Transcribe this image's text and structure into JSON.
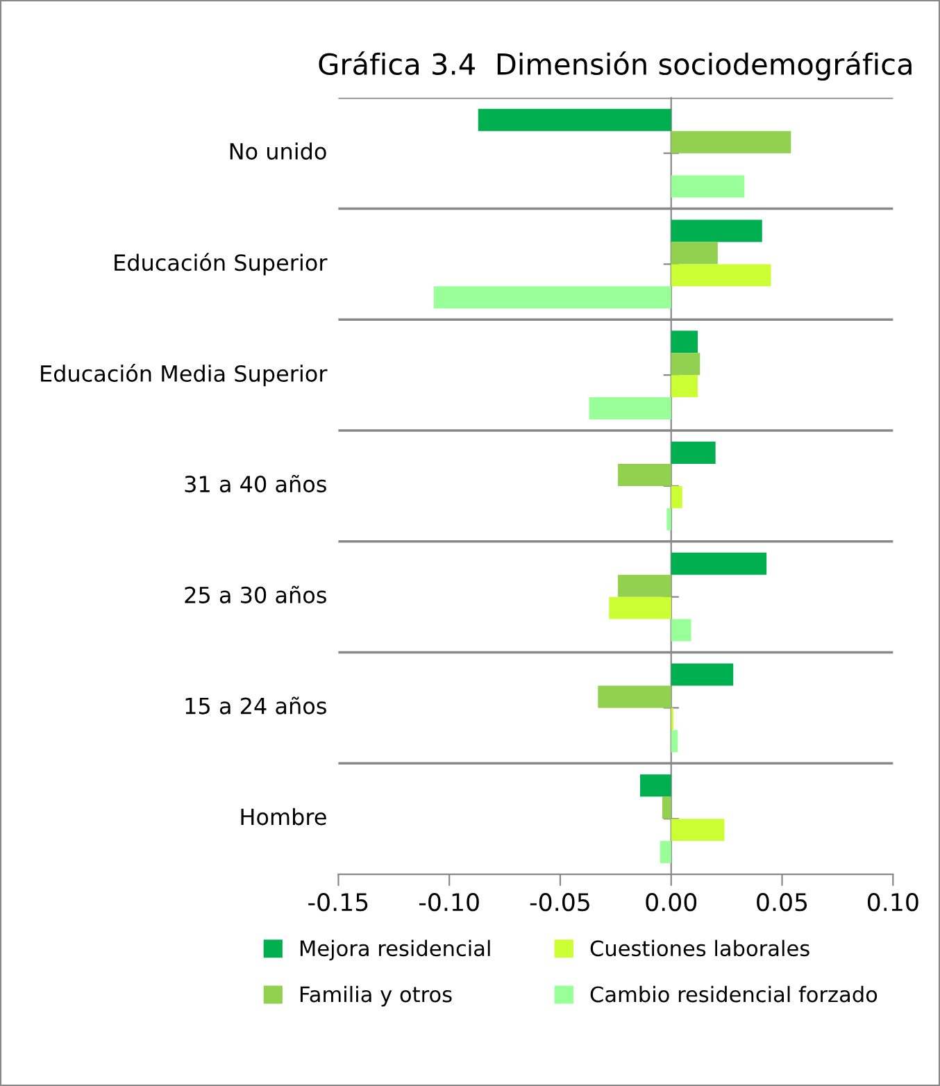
{
  "chart_data": {
    "type": "bar",
    "orientation": "horizontal",
    "title": "Gráfica 3.4  Dimensión sociodemográfica",
    "categories": [
      "No unido",
      "Educación Superior",
      "Educación Media Superior",
      "31 a 40 años",
      "25 a 30 años",
      "15 a 24 años",
      "Hombre"
    ],
    "series": [
      {
        "name": "Mejora residencial",
        "color": "#00b050",
        "values": [
          -0.087,
          0.041,
          0.012,
          0.02,
          0.043,
          0.028,
          -0.014
        ]
      },
      {
        "name": "Familia y otros",
        "color": "#92d050",
        "values": [
          0.054,
          0.021,
          0.013,
          -0.024,
          -0.024,
          -0.033,
          -0.004
        ]
      },
      {
        "name": "Cuestiones laborales",
        "color": "#ccff33",
        "values": [
          null,
          0.045,
          0.012,
          0.005,
          -0.028,
          0.001,
          0.024
        ]
      },
      {
        "name": "Cambio residencial forzado",
        "color": "#99ff99",
        "values": [
          0.033,
          -0.107,
          -0.037,
          -0.002,
          0.009,
          0.003,
          -0.005
        ]
      }
    ],
    "xlim": [
      -0.15,
      0.1
    ],
    "xticks": [
      {
        "value": -0.15,
        "label": "-0.15"
      },
      {
        "value": -0.1,
        "label": "-0.10"
      },
      {
        "value": -0.05,
        "label": "-0.05"
      },
      {
        "value": 0,
        "label": "0.00"
      },
      {
        "value": 0.05,
        "label": "0.05"
      },
      {
        "value": 0.1,
        "label": "0.10"
      }
    ],
    "grid": "y",
    "legend": "bottom"
  }
}
